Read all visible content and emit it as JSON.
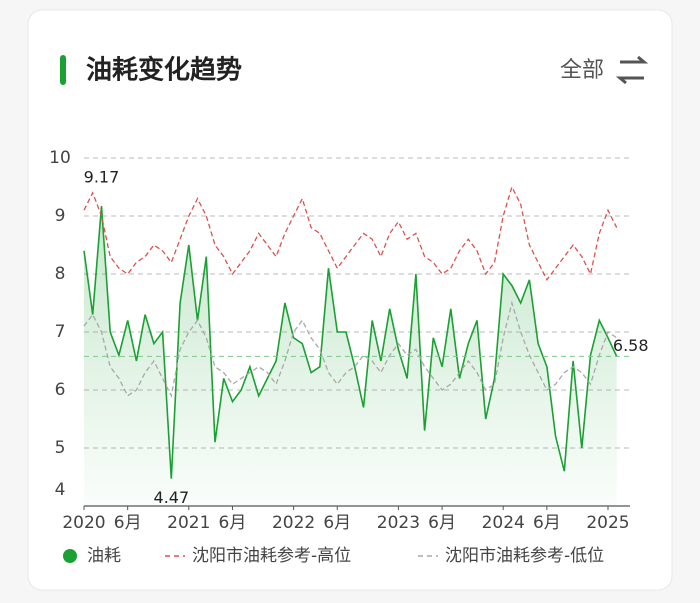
{
  "header": {
    "filter": "全部"
  },
  "chart_data": {
    "type": "line",
    "title": "油耗变化趋势",
    "x": [
      "2020-01",
      "2020-02",
      "2020-03",
      "2020-04",
      "2020-05",
      "2020-06",
      "2020-07",
      "2020-08",
      "2020-09",
      "2020-10",
      "2020-11",
      "2020-12",
      "2021-01",
      "2021-02",
      "2021-03",
      "2021-04",
      "2021-05",
      "2021-06",
      "2021-07",
      "2021-08",
      "2021-09",
      "2021-10",
      "2021-11",
      "2021-12",
      "2022-01",
      "2022-02",
      "2022-03",
      "2022-04",
      "2022-05",
      "2022-06",
      "2022-07",
      "2022-08",
      "2022-09",
      "2022-10",
      "2022-11",
      "2022-12",
      "2023-01",
      "2023-02",
      "2023-03",
      "2023-04",
      "2023-05",
      "2023-06",
      "2023-07",
      "2023-08",
      "2023-09",
      "2023-10",
      "2023-11",
      "2023-12",
      "2024-01",
      "2024-02",
      "2024-03",
      "2024-04",
      "2024-05",
      "2024-06",
      "2024-07",
      "2024-08",
      "2024-09",
      "2024-10",
      "2024-11",
      "2024-12",
      "2025-01",
      "2025-02"
    ],
    "series": [
      {
        "name": "油耗",
        "color": "#1aa033",
        "style": "solid",
        "area": true,
        "values": [
          8.4,
          7.3,
          9.17,
          7.0,
          6.6,
          7.2,
          6.5,
          7.3,
          6.8,
          7.0,
          4.47,
          7.5,
          8.5,
          7.2,
          8.3,
          5.1,
          6.2,
          5.8,
          6.0,
          6.4,
          5.9,
          6.2,
          6.5,
          7.5,
          6.9,
          6.8,
          6.3,
          6.4,
          8.1,
          7.0,
          7.0,
          6.4,
          5.7,
          7.2,
          6.5,
          7.4,
          6.7,
          6.2,
          8.0,
          5.3,
          6.9,
          6.4,
          7.4,
          6.2,
          6.8,
          7.2,
          5.5,
          6.2,
          8.0,
          7.8,
          7.5,
          7.9,
          6.8,
          6.4,
          5.2,
          4.6,
          6.5,
          5.0,
          6.6,
          7.2,
          6.9,
          6.58
        ]
      },
      {
        "name": "沈阳市油耗参考-高位",
        "color": "#d9534f",
        "style": "dashed",
        "values": [
          9.1,
          9.4,
          9.0,
          8.3,
          8.1,
          8.0,
          8.2,
          8.3,
          8.5,
          8.4,
          8.2,
          8.6,
          9.0,
          9.3,
          9.0,
          8.5,
          8.3,
          8.0,
          8.2,
          8.4,
          8.7,
          8.5,
          8.3,
          8.7,
          9.0,
          9.3,
          8.8,
          8.7,
          8.4,
          8.1,
          8.3,
          8.5,
          8.7,
          8.6,
          8.3,
          8.7,
          8.9,
          8.6,
          8.7,
          8.3,
          8.2,
          8.0,
          8.1,
          8.4,
          8.6,
          8.4,
          8.0,
          8.2,
          9.0,
          9.5,
          9.2,
          8.5,
          8.2,
          7.9,
          8.1,
          8.3,
          8.5,
          8.3,
          8.0,
          8.7,
          9.1,
          8.8
        ]
      },
      {
        "name": "沈阳市油耗参考-低位",
        "color": "#a8a8a8",
        "style": "dashed",
        "values": [
          7.1,
          7.3,
          7.0,
          6.4,
          6.2,
          5.9,
          6.0,
          6.3,
          6.5,
          6.2,
          5.9,
          6.7,
          7.0,
          7.2,
          6.9,
          6.4,
          6.3,
          6.1,
          6.2,
          6.3,
          6.4,
          6.3,
          6.1,
          6.5,
          7.0,
          7.2,
          6.9,
          6.7,
          6.3,
          6.1,
          6.3,
          6.4,
          6.6,
          6.5,
          6.3,
          6.6,
          6.8,
          6.6,
          6.7,
          6.4,
          6.2,
          6.0,
          6.1,
          6.3,
          6.5,
          6.3,
          6.0,
          6.1,
          6.9,
          7.5,
          7.0,
          6.6,
          6.3,
          6.0,
          6.1,
          6.3,
          6.4,
          6.3,
          6.1,
          6.6,
          7.0,
          6.9
        ]
      }
    ],
    "ylim": [
      4,
      10
    ],
    "yticks": [
      4,
      5,
      6,
      7,
      8,
      9,
      10
    ],
    "xticks": [
      {
        "value": "2020-01",
        "label": "2020"
      },
      {
        "value": "2020-06",
        "label": "6月"
      },
      {
        "value": "2021-01",
        "label": "2021"
      },
      {
        "value": "2021-06",
        "label": "6月"
      },
      {
        "value": "2022-01",
        "label": "2022"
      },
      {
        "value": "2022-06",
        "label": "6月"
      },
      {
        "value": "2023-01",
        "label": "2023"
      },
      {
        "value": "2023-06",
        "label": "6月"
      },
      {
        "value": "2024-01",
        "label": "2024"
      },
      {
        "value": "2024-06",
        "label": "6月"
      },
      {
        "value": "2025-01",
        "label": "2025"
      }
    ],
    "grid": true,
    "legend": "bottom"
  }
}
